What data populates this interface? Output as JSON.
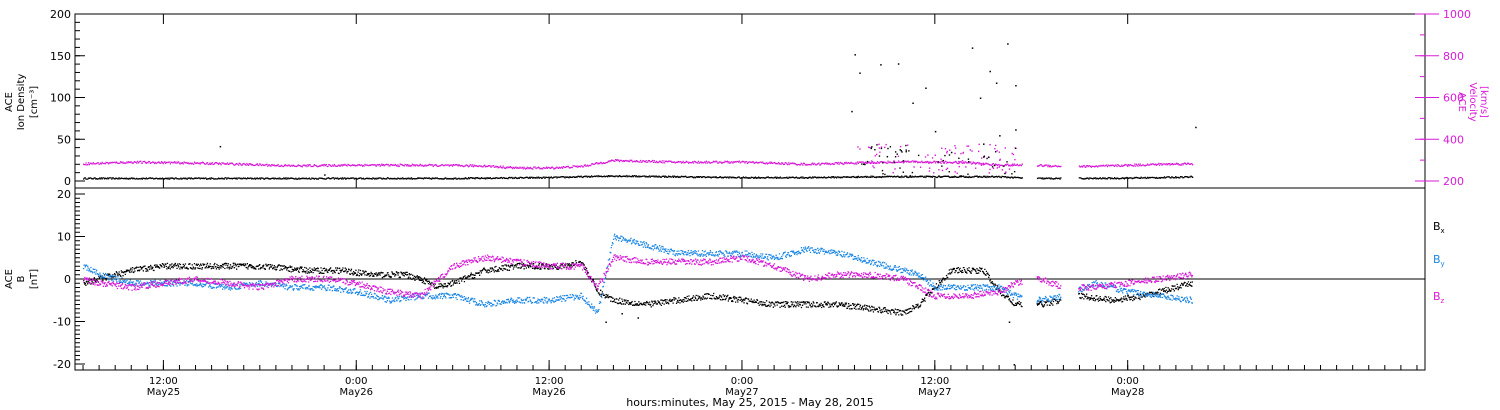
{
  "xaxis": {
    "title": "hours:minutes, May 25, 2015 - May 28, 2015",
    "range_hours": [
      6.5,
      90.5
    ],
    "ticks": [
      {
        "hour": 12,
        "time": "12:00",
        "date": "May25"
      },
      {
        "hour": 24,
        "time": "0:00",
        "date": "May26"
      },
      {
        "hour": 36,
        "time": "12:00",
        "date": "May26"
      },
      {
        "hour": 48,
        "time": "0:00",
        "date": "May27"
      },
      {
        "hour": 60,
        "time": "12:00",
        "date": "May27"
      },
      {
        "hour": 72,
        "time": "0:00",
        "date": "May28"
      }
    ]
  },
  "top_panel": {
    "left_label": [
      "ACE",
      "Ion Density",
      "[cm⁻³]"
    ],
    "right_label": [
      "ACE",
      "Velocity",
      "[km/s]"
    ],
    "left_ticks": [
      "0",
      "50",
      "100",
      "150",
      "200"
    ],
    "right_ticks": [
      "200",
      "400",
      "600",
      "800",
      "1000"
    ]
  },
  "bottom_panel": {
    "left_label": [
      "ACE",
      "B",
      "[nT]"
    ],
    "left_ticks": [
      "-20",
      "-10",
      "0",
      "10",
      "20"
    ],
    "legend": [
      {
        "text": "B",
        "sub": "x",
        "color": "#000000"
      },
      {
        "text": "B",
        "sub": "y",
        "color": "#1e88e5"
      },
      {
        "text": "B",
        "sub": "z",
        "color": "#d81bd8"
      }
    ]
  },
  "colors": {
    "black": "#000000",
    "magenta": "#d81bd8",
    "blue": "#1e88e5"
  },
  "chart_data": [
    {
      "type": "scatter",
      "panel": "top",
      "xlabel": "hours:minutes, May 25, 2015 - May 28, 2015",
      "ylabel_left": "ACE Ion Density [cm⁻³]",
      "ylabel_right": "ACE Velocity [km/s]",
      "ylim_left": [
        0,
        200
      ],
      "ylim_right": [
        200,
        1000
      ],
      "grid": false,
      "data_gaps_hours": [
        [
          65.4,
          66.3
        ],
        [
          67.8,
          68.9
        ]
      ],
      "series": [
        {
          "name": "Ion Density",
          "axis": "left",
          "color": "#000000",
          "points": [
            [
              7,
              3
            ],
            [
              12,
              3
            ],
            [
              18,
              3
            ],
            [
              24,
              3
            ],
            [
              30,
              3
            ],
            [
              36,
              4
            ],
            [
              40,
              6
            ],
            [
              44,
              5
            ],
            [
              48,
              4
            ],
            [
              52,
              4
            ],
            [
              56,
              5
            ],
            [
              60,
              5
            ],
            [
              64,
              5
            ],
            [
              66,
              3
            ],
            [
              70,
              3
            ],
            [
              74,
              4
            ],
            [
              76,
              5
            ],
            [
              76.2,
              55
            ]
          ]
        },
        {
          "name": "Velocity",
          "axis": "right",
          "color": "#d81bd8",
          "points": [
            [
              7,
              282
            ],
            [
              10,
              290
            ],
            [
              12,
              288
            ],
            [
              16,
              282
            ],
            [
              20,
              272
            ],
            [
              24,
              276
            ],
            [
              28,
              275
            ],
            [
              32,
              272
            ],
            [
              34,
              262
            ],
            [
              36,
              262
            ],
            [
              38,
              270
            ],
            [
              40,
              298
            ],
            [
              44,
              290
            ],
            [
              48,
              290
            ],
            [
              52,
              280
            ],
            [
              55,
              286
            ],
            [
              58,
              292
            ],
            [
              62,
              288
            ],
            [
              64,
              276
            ],
            [
              66,
              276
            ],
            [
              68,
              270
            ],
            [
              70,
              270
            ],
            [
              74,
              280
            ],
            [
              76,
              282
            ],
            [
              76.2,
              300
            ]
          ]
        }
      ]
    },
    {
      "type": "scatter",
      "panel": "bottom",
      "xlabel": "hours:minutes, May 25, 2015 - May 28, 2015",
      "ylabel": "ACE B [nT]",
      "ylim": [
        -20,
        20
      ],
      "grid": false,
      "data_gaps_hours": [
        [
          65.4,
          66.3
        ],
        [
          67.8,
          68.9
        ]
      ],
      "series": [
        {
          "name": "Bx",
          "color": "#000000",
          "points": [
            [
              7,
              -1
            ],
            [
              8,
              0
            ],
            [
              9,
              1
            ],
            [
              10,
              2
            ],
            [
              12,
              3
            ],
            [
              14,
              3
            ],
            [
              18,
              3
            ],
            [
              21,
              2
            ],
            [
              23,
              2
            ],
            [
              25,
              1
            ],
            [
              27,
              1
            ],
            [
              28,
              0
            ],
            [
              29,
              -2
            ],
            [
              30,
              -1
            ],
            [
              32,
              2
            ],
            [
              34,
              3
            ],
            [
              36,
              3
            ],
            [
              37,
              3
            ],
            [
              38,
              4
            ],
            [
              39,
              -3
            ],
            [
              40,
              -5
            ],
            [
              42,
              -6
            ],
            [
              44,
              -5
            ],
            [
              46,
              -4
            ],
            [
              48,
              -5
            ],
            [
              50,
              -6
            ],
            [
              52,
              -6
            ],
            [
              54,
              -6
            ],
            [
              56,
              -7
            ],
            [
              58,
              -8
            ],
            [
              59,
              -6
            ],
            [
              60,
              -2
            ],
            [
              61,
              2
            ],
            [
              62,
              2
            ],
            [
              63,
              2
            ],
            [
              64,
              -3
            ],
            [
              65,
              -6
            ],
            [
              66.5,
              -6
            ],
            [
              68,
              -5
            ],
            [
              69,
              -4
            ],
            [
              71,
              -5
            ],
            [
              73,
              -4
            ],
            [
              74,
              -3
            ],
            [
              75,
              -2
            ],
            [
              76,
              -1
            ]
          ]
        },
        {
          "name": "By",
          "color": "#1e88e5",
          "points": [
            [
              7,
              3
            ],
            [
              8,
              1
            ],
            [
              10,
              -1
            ],
            [
              12,
              -1
            ],
            [
              14,
              -1
            ],
            [
              16,
              -2
            ],
            [
              18,
              -1
            ],
            [
              20,
              -2
            ],
            [
              22,
              -2
            ],
            [
              24,
              -3
            ],
            [
              26,
              -5
            ],
            [
              28,
              -4
            ],
            [
              30,
              -4
            ],
            [
              32,
              -6
            ],
            [
              34,
              -5
            ],
            [
              36,
              -5
            ],
            [
              38,
              -4
            ],
            [
              39,
              -8
            ],
            [
              40,
              10
            ],
            [
              42,
              8
            ],
            [
              44,
              6
            ],
            [
              46,
              6
            ],
            [
              48,
              6
            ],
            [
              50,
              5
            ],
            [
              52,
              7
            ],
            [
              54,
              6
            ],
            [
              56,
              4
            ],
            [
              58,
              2
            ],
            [
              59,
              1
            ],
            [
              60,
              -2
            ],
            [
              62,
              -2
            ],
            [
              64,
              -2
            ],
            [
              65,
              -4
            ],
            [
              66.5,
              -5
            ],
            [
              68,
              -4
            ],
            [
              70,
              -1
            ],
            [
              72,
              -3
            ],
            [
              74,
              -4
            ],
            [
              76,
              -5
            ]
          ]
        },
        {
          "name": "Bz",
          "color": "#d81bd8",
          "points": [
            [
              7,
              0
            ],
            [
              8,
              -1
            ],
            [
              10,
              -2
            ],
            [
              12,
              -1
            ],
            [
              14,
              0
            ],
            [
              16,
              -1
            ],
            [
              18,
              -2
            ],
            [
              20,
              0
            ],
            [
              22,
              0
            ],
            [
              24,
              -1
            ],
            [
              26,
              -3
            ],
            [
              28,
              -4
            ],
            [
              30,
              3
            ],
            [
              32,
              5
            ],
            [
              34,
              4
            ],
            [
              36,
              3
            ],
            [
              38,
              3
            ],
            [
              39,
              -2
            ],
            [
              40,
              5
            ],
            [
              42,
              4
            ],
            [
              44,
              4
            ],
            [
              46,
              4
            ],
            [
              48,
              5
            ],
            [
              50,
              3
            ],
            [
              52,
              0
            ],
            [
              54,
              1
            ],
            [
              56,
              1
            ],
            [
              58,
              0
            ],
            [
              60,
              -4
            ],
            [
              62,
              -4
            ],
            [
              64,
              -3
            ],
            [
              65,
              -1
            ],
            [
              66.5,
              0
            ],
            [
              68,
              -2
            ],
            [
              70,
              -2
            ],
            [
              72,
              -1
            ],
            [
              74,
              0
            ],
            [
              76,
              1
            ]
          ]
        }
      ]
    }
  ]
}
